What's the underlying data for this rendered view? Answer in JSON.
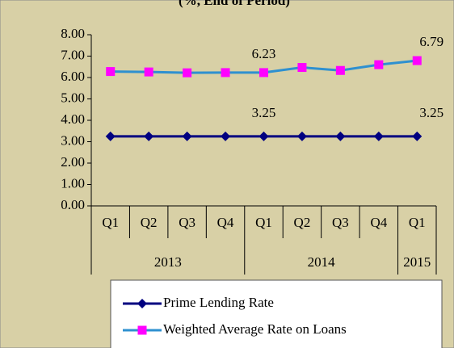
{
  "chart_data": {
    "type": "line",
    "title": "(%, End of Period)",
    "categories": [
      "Q1",
      "Q2",
      "Q3",
      "Q4",
      "Q1",
      "Q2",
      "Q3",
      "Q4",
      "Q1"
    ],
    "years": [
      "2013",
      "2013",
      "2013",
      "2013",
      "2014",
      "2014",
      "2014",
      "2014",
      "2015"
    ],
    "series": [
      {
        "name": "Prime Lending Rate",
        "color": "#000080",
        "marker": "diamond",
        "values": [
          3.25,
          3.25,
          3.25,
          3.25,
          3.25,
          3.25,
          3.25,
          3.25,
          3.25
        ],
        "value_labels": [
          null,
          null,
          null,
          null,
          "3.25",
          null,
          null,
          null,
          "3.25"
        ]
      },
      {
        "name": "Weighted Average Rate on Loans",
        "color": "#2e90d0",
        "marker_color": "#ff00ff",
        "marker": "square",
        "values": [
          6.28,
          6.26,
          6.22,
          6.23,
          6.23,
          6.47,
          6.33,
          6.6,
          6.79
        ],
        "value_labels": [
          null,
          null,
          null,
          null,
          "6.23",
          null,
          null,
          null,
          "6.79"
        ]
      }
    ],
    "ylim": [
      0,
      8
    ],
    "yticks": [
      {
        "value": 0,
        "label": "0.00"
      },
      {
        "value": 1,
        "label": "1.00"
      },
      {
        "value": 2,
        "label": "2.00"
      },
      {
        "value": 3,
        "label": "3.00"
      },
      {
        "value": 4,
        "label": "4.00"
      },
      {
        "value": 5,
        "label": "5.00"
      },
      {
        "value": 6,
        "label": "6.00"
      },
      {
        "value": 7,
        "label": "7.00"
      },
      {
        "value": 8,
        "label": "8.00"
      }
    ],
    "legend": "bottom"
  }
}
